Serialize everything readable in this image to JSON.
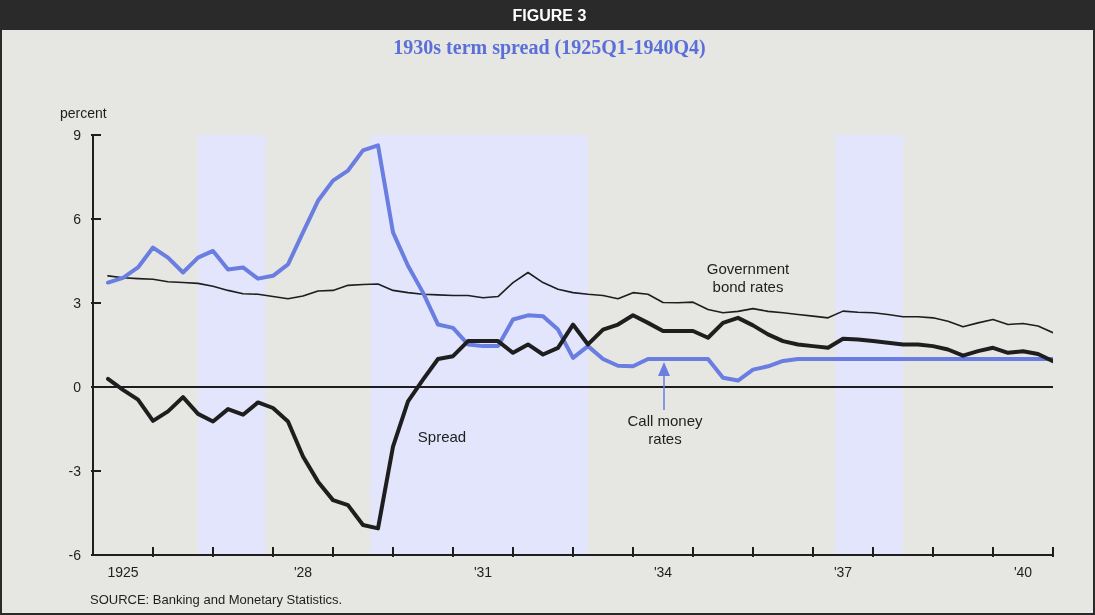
{
  "chart_data": {
    "type": "line",
    "title": "FIGURE 3",
    "subtitle": "1930s term spread (1925Q1-1940Q4)",
    "ylabel": "percent",
    "annotations": [
      "SOURCE: Banking and Monetary Statistics."
    ],
    "x": [
      1924.75,
      1925,
      1925.25,
      1925.5,
      1925.75,
      1926,
      1926.25,
      1926.5,
      1926.75,
      1927,
      1927.25,
      1927.5,
      1927.75,
      1928,
      1928.25,
      1928.5,
      1928.75,
      1929,
      1929.25,
      1929.5,
      1929.75,
      1930,
      1930.25,
      1930.5,
      1930.75,
      1931,
      1931.25,
      1931.5,
      1931.75,
      1932,
      1932.25,
      1932.5,
      1932.75,
      1933,
      1933.25,
      1933.5,
      1933.75,
      1934,
      1934.25,
      1934.5,
      1934.75,
      1935,
      1935.25,
      1935.5,
      1935.75,
      1936,
      1936.25,
      1936.5,
      1936.75,
      1937,
      1937.25,
      1937.5,
      1937.75,
      1938,
      1938.25,
      1938.5,
      1938.75,
      1939,
      1939.25,
      1939.5,
      1939.75,
      1940,
      1940.25,
      1940.5
    ],
    "series": [
      {
        "name": "Government bond rates",
        "color": "#1e1e1e",
        "values": [
          3.97,
          3.9,
          3.87,
          3.85,
          3.76,
          3.73,
          3.7,
          3.6,
          3.45,
          3.33,
          3.31,
          3.23,
          3.15,
          3.25,
          3.43,
          3.45,
          3.63,
          3.66,
          3.68,
          3.45,
          3.37,
          3.31,
          3.29,
          3.27,
          3.27,
          3.19,
          3.23,
          3.73,
          4.09,
          3.73,
          3.49,
          3.37,
          3.31,
          3.27,
          3.15,
          3.37,
          3.31,
          3.02,
          3.01,
          3.03,
          2.77,
          2.65,
          2.7,
          2.8,
          2.7,
          2.65,
          2.59,
          2.53,
          2.47,
          2.71,
          2.67,
          2.65,
          2.59,
          2.51,
          2.51,
          2.47,
          2.35,
          2.15,
          2.29,
          2.41,
          2.23,
          2.27,
          2.18,
          1.94
        ]
      },
      {
        "name": "Call money rates",
        "color": "#6a7de0",
        "values": [
          3.73,
          3.9,
          4.27,
          4.98,
          4.62,
          4.09,
          4.62,
          4.86,
          4.2,
          4.27,
          3.87,
          3.97,
          4.38,
          5.52,
          6.65,
          7.37,
          7.73,
          8.45,
          8.63,
          5.52,
          4.33,
          3.37,
          2.23,
          2.11,
          1.52,
          1.46,
          1.46,
          2.41,
          2.56,
          2.53,
          2.05,
          1.04,
          1.46,
          1.0,
          0.76,
          0.74,
          1.0,
          1.0,
          1.0,
          1.0,
          1.0,
          0.33,
          0.23,
          0.62,
          0.74,
          0.93,
          1.0,
          1.0,
          1.0,
          1.0,
          1.0,
          1.0,
          1.0,
          1.0,
          1.0,
          1.0,
          1.0,
          1.0,
          1.0,
          1.0,
          1.0,
          1.0,
          1.0,
          1.0
        ]
      },
      {
        "name": "Spread",
        "color": "#1e1e1e",
        "values": [
          0.29,
          -0.1,
          -0.45,
          -1.21,
          -0.87,
          -0.36,
          -0.96,
          -1.23,
          -0.79,
          -0.99,
          -0.55,
          -0.75,
          -1.23,
          -2.48,
          -3.38,
          -4.04,
          -4.22,
          -4.93,
          -5.05,
          -2.13,
          -0.51,
          0.26,
          1.0,
          1.1,
          1.64,
          1.64,
          1.64,
          1.22,
          1.52,
          1.16,
          1.4,
          2.23,
          1.52,
          2.05,
          2.23,
          2.56,
          2.29,
          2.0,
          2.0,
          2.0,
          1.76,
          2.29,
          2.47,
          2.2,
          1.88,
          1.64,
          1.52,
          1.46,
          1.4,
          1.72,
          1.7,
          1.64,
          1.58,
          1.52,
          1.52,
          1.46,
          1.34,
          1.12,
          1.28,
          1.4,
          1.22,
          1.28,
          1.18,
          0.92
        ]
      }
    ],
    "xlim": [
      1924.5,
      1940.5
    ],
    "xticks": [
      1925,
      {
        "value": 1925.5,
        "label": null
      },
      {
        "value": 1926.5,
        "label": null
      },
      {
        "value": 1927.5,
        "label": null
      },
      {
        "value": 1928,
        "label": "'28"
      },
      {
        "value": 1928.5,
        "label": null
      },
      {
        "value": 1929.5,
        "label": null
      },
      {
        "value": 1930.5,
        "label": null
      },
      {
        "value": 1931,
        "label": "'31"
      },
      {
        "value": 1931.5,
        "label": null
      },
      {
        "value": 1932.5,
        "label": null
      },
      {
        "value": 1933.5,
        "label": null
      },
      {
        "value": 1934,
        "label": "'34"
      },
      {
        "value": 1934.5,
        "label": null
      },
      {
        "value": 1935.5,
        "label": null
      },
      {
        "value": 1936.5,
        "label": null
      },
      {
        "value": 1937,
        "label": "'37"
      },
      {
        "value": 1937.5,
        "label": null
      },
      {
        "value": 1938.5,
        "label": null
      },
      {
        "value": 1939.5,
        "label": null
      },
      {
        "value": 1940,
        "label": "'40"
      },
      {
        "value": 1940.5,
        "label": null
      }
    ],
    "ylim": [
      -6,
      9
    ],
    "yticks": [
      -6,
      -3,
      0,
      3,
      6,
      9
    ],
    "ref_lines": [
      {
        "axis": "y",
        "value": 0,
        "color": "#1e1e1e"
      }
    ],
    "bands": [
      {
        "axis": "x",
        "from": 1926.25,
        "to": 1927.375,
        "color": "#e2e5fb"
      },
      {
        "axis": "x",
        "from": 1929.125,
        "to": 1932.75,
        "color": "#e2e5fb"
      },
      {
        "axis": "x",
        "from": 1936.875,
        "to": 1938,
        "color": "#e2e5fb"
      }
    ],
    "grid": false,
    "legend": false
  }
}
